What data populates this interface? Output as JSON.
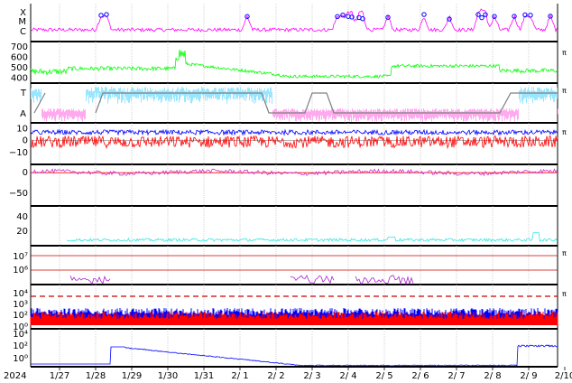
{
  "chart_data": [
    {
      "type": "scatter",
      "ylabels": [
        "X",
        "M",
        "C"
      ],
      "flare_markers_x": [
        1.95,
        2.1,
        6.0,
        8.5,
        8.65,
        8.8,
        8.9,
        9.1,
        9.2,
        9.9,
        10.9,
        11.6,
        12.4,
        12.5,
        12.6,
        12.85,
        13.4,
        13.7,
        13.85,
        14.4
      ],
      "colors": {
        "line": "#ff00ff",
        "marker": "#0000ff"
      }
    },
    {
      "type": "line",
      "yticks": [
        "700",
        "600",
        "500",
        "400"
      ],
      "ylim": [
        350,
        750
      ],
      "series": [
        {
          "color": "#00ff00"
        }
      ],
      "side_label": "π"
    },
    {
      "type": "scatter",
      "ylabels": [
        "T",
        "A"
      ],
      "series": [
        {
          "color": "#99e6ff"
        },
        {
          "color": "#ffaaee"
        },
        {
          "color": "#808080"
        }
      ],
      "side_label": "π"
    },
    {
      "type": "line",
      "yticks": [
        "10",
        "0",
        "−10"
      ],
      "ylim": [
        -20,
        15
      ],
      "series": [
        {
          "color": "#0000ff"
        },
        {
          "color": "#ff0000"
        }
      ],
      "side_label": "π"
    },
    {
      "type": "line",
      "yticks": [
        "0",
        "−50"
      ],
      "ylim": [
        -80,
        20
      ],
      "series": [
        {
          "color": "#cc33cc"
        },
        {
          "color": "#ff0000"
        }
      ]
    },
    {
      "type": "line",
      "yticks": [
        "40",
        "20"
      ],
      "ylim": [
        0,
        55
      ],
      "series": [
        {
          "color": "#33e6e6"
        }
      ]
    },
    {
      "type": "scatter",
      "yticks": [
        "10⁷",
        "10⁶"
      ],
      "series": [
        {
          "color": "#aa22cc"
        }
      ],
      "threshold_color": "#cc0000",
      "side_label": "π"
    },
    {
      "type": "line",
      "yticks": [
        "10⁴",
        "10³",
        "10²",
        "10⁰"
      ],
      "series": [
        {
          "color": "#0000ff"
        },
        {
          "color": "#ff0000"
        }
      ],
      "threshold_color": "#cc0000",
      "side_label": "π"
    },
    {
      "type": "line",
      "yticks": [
        "10⁴",
        "10²",
        "10⁰"
      ],
      "series": [
        {
          "color": "#0000ff"
        }
      ]
    }
  ],
  "xaxis": {
    "start_label": "2024",
    "ticks": [
      "1/27",
      "1/28",
      "1/29",
      "1/30",
      "1/31",
      "2/ 1",
      "2/ 2",
      "2/ 3",
      "2/ 4",
      "2/ 5",
      "2/ 6",
      "2/ 7",
      "2/ 8",
      "2/ 9",
      "2/10"
    ]
  }
}
